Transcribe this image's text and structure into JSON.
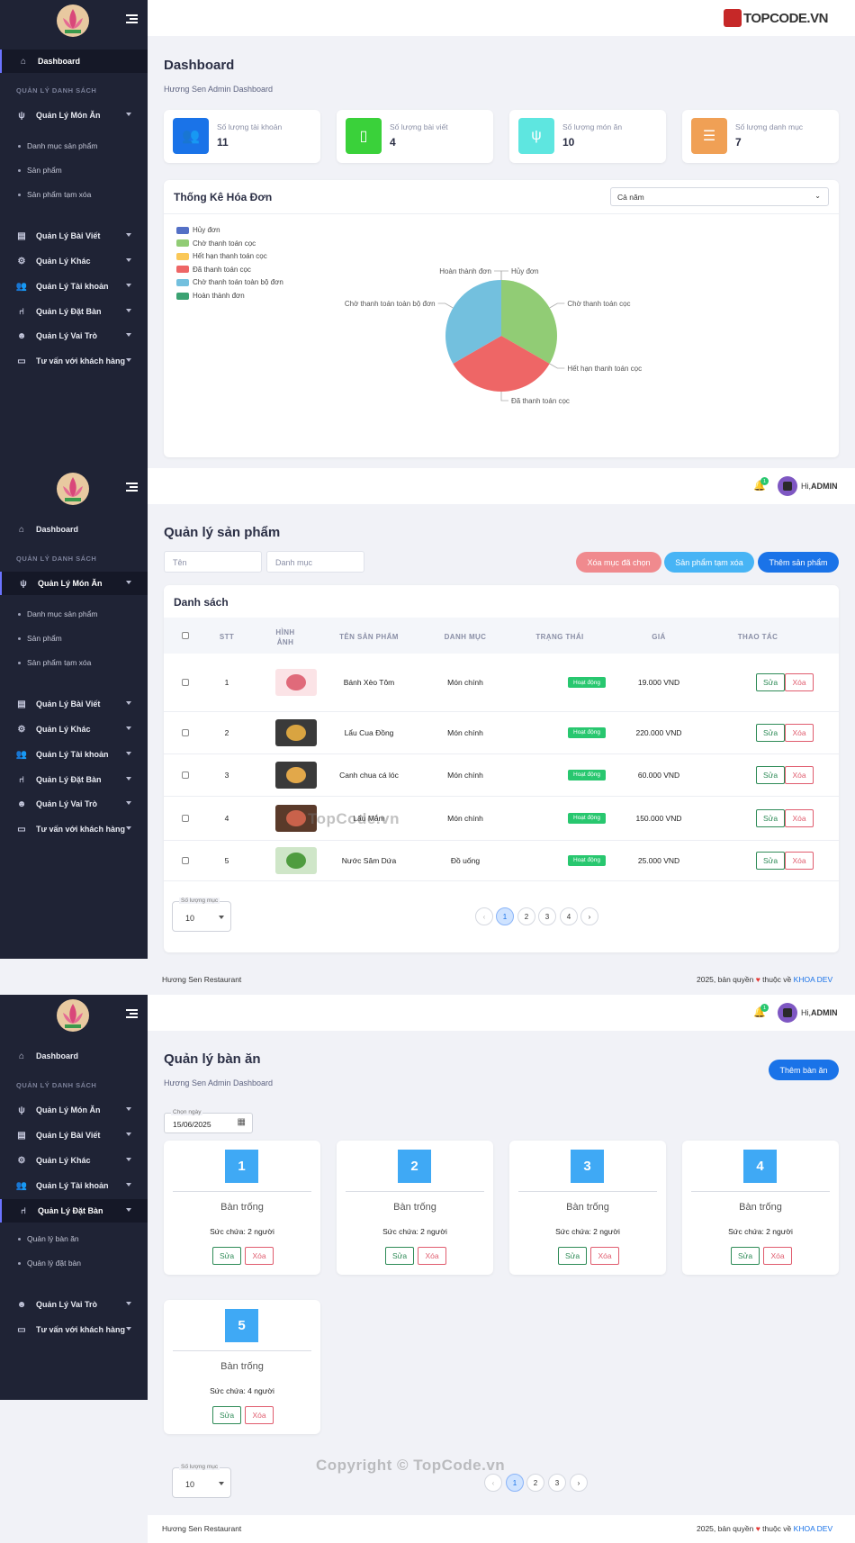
{
  "brand": {
    "watermark_logo": "TOPCODE.VN",
    "watermark_mid": "TopCode.vn",
    "watermark_bottom": "Copyright © TopCode.vn"
  },
  "user": {
    "greeting": "Hi,",
    "name": "ADMIN",
    "notif": "1"
  },
  "sidebar": {
    "dashboard": "Dashboard",
    "group": "QUẢN LÝ DANH SÁCH",
    "items": [
      "Quản Lý Món Ăn",
      "Quản Lý Bài Viết",
      "Quản Lý Khác",
      "Quản Lý Tài khoản",
      "Quản Lý Đặt Bàn",
      "Quản Lý Vai Trò",
      "Tư vấn với khách hàng"
    ],
    "monan_sub": [
      "Danh mục sản phẩm",
      "Sản phẩm",
      "Sản phẩm tạm xóa"
    ],
    "datban_sub": [
      "Quản lý bàn ăn",
      "Quản lý đặt bàn"
    ]
  },
  "dashboard": {
    "title": "Dashboard",
    "crumb": "Hương Sen Admin Dashboard",
    "stats": [
      {
        "label": "Số lượng tài khoản",
        "value": "11",
        "color": "#1a73e8",
        "icon": "users-icon"
      },
      {
        "label": "Số lượng bài viết",
        "value": "4",
        "color": "#3ad13a",
        "icon": "document-icon"
      },
      {
        "label": "Số lượng món ăn",
        "value": "10",
        "color": "#5ee6e0",
        "icon": "utensils-icon"
      },
      {
        "label": "Số lượng danh mục",
        "value": "7",
        "color": "#f0a055",
        "icon": "list-icon"
      }
    ],
    "chart_title": "Thống Kê Hóa Đơn",
    "period": "Cả năm"
  },
  "chart_data": {
    "type": "pie",
    "title": "Thống Kê Hóa Đơn",
    "legend_position": "top-left",
    "labels": [
      "Hủy đơn",
      "Chờ thanh toán cọc",
      "Hết hạn thanh toán cọc",
      "Đã thanh toán cọc",
      "Chờ thanh toán toàn bộ đơn",
      "Hoàn thành đơn"
    ],
    "colors": [
      "#5470c6",
      "#91cc75",
      "#fac858",
      "#ee6666",
      "#73c0de",
      "#3ba272"
    ],
    "values": [
      0,
      1,
      0,
      1,
      1,
      0
    ]
  },
  "products": {
    "title": "Quản lý sản phẩm",
    "ph_name": "Tên",
    "ph_cat": "Danh mục",
    "btn_del": "Xóa mục đã chọn",
    "btn_trash": "Sản phẩm tạm xóa",
    "btn_add": "Thêm sản phẩm",
    "list_title": "Danh sách",
    "headers": [
      "STT",
      "HÌNH ẢNH",
      "TÊN SẢN PHẨM",
      "DANH MỤC",
      "TRẠNG THÁI",
      "GIÁ",
      "THAO TÁC"
    ],
    "rows": [
      {
        "stt": "1",
        "name": "Bánh Xèo Tôm",
        "cat": "Món chính",
        "status": "Hoạt động",
        "price": "19.000 VND"
      },
      {
        "stt": "2",
        "name": "Lẩu Cua Đồng",
        "cat": "Món chính",
        "status": "Hoạt động",
        "price": "220.000 VND"
      },
      {
        "stt": "3",
        "name": "Canh chua cá lóc",
        "cat": "Món chính",
        "status": "Hoạt động",
        "price": "60.000 VND"
      },
      {
        "stt": "4",
        "name": "Lẩu Mắm",
        "cat": "Món chính",
        "status": "Hoạt động",
        "price": "150.000 VND"
      },
      {
        "stt": "5",
        "name": "Nước Sâm Dứa",
        "cat": "Đồ uống",
        "status": "Hoạt động",
        "price": "25.000 VND"
      }
    ],
    "edit": "Sửa",
    "delete": "Xóa",
    "page_size_label": "Số lượng mục",
    "page_size": "10",
    "pages": [
      "1",
      "2",
      "3",
      "4"
    ]
  },
  "tables": {
    "title": "Quản lý bàn ăn",
    "crumb": "Hương Sen Admin Dashboard",
    "btn_add": "Thêm bàn ăn",
    "date_label": "Chọn ngày",
    "date": "15/06/2025",
    "items": [
      {
        "num": "1",
        "status": "Bàn trống",
        "cap": "Sức chứa: 2 người"
      },
      {
        "num": "2",
        "status": "Bàn trống",
        "cap": "Sức chứa: 2 người"
      },
      {
        "num": "3",
        "status": "Bàn trống",
        "cap": "Sức chứa: 2 người"
      },
      {
        "num": "4",
        "status": "Bàn trống",
        "cap": "Sức chứa: 2 người"
      },
      {
        "num": "5",
        "status": "Bàn trống",
        "cap": "Sức chứa: 4 người"
      }
    ],
    "pages": [
      "1",
      "2",
      "3"
    ]
  },
  "footer": {
    "left": "Hương Sen Restaurant",
    "copy": "2025, bản quyền",
    "by": "thuộc về",
    "author": "KHOA DEV"
  }
}
